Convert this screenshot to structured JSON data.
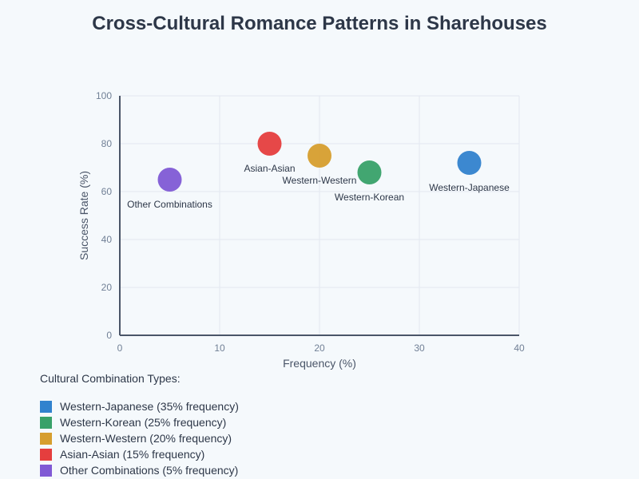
{
  "title": "Cross-Cultural Romance Patterns in Sharehouses",
  "legend": {
    "title": "Cultural Combination Types:",
    "items": [
      {
        "label": "Western-Japanese (35% frequency)",
        "color": "#3182ce"
      },
      {
        "label": "Western-Korean (25% frequency)",
        "color": "#38a169"
      },
      {
        "label": "Western-Western (20% frequency)",
        "color": "#d69e2e"
      },
      {
        "label": "Asian-Asian (15% frequency)",
        "color": "#e53e3e"
      },
      {
        "label": "Other Combinations (5% frequency)",
        "color": "#805ad5"
      }
    ]
  },
  "chart_data": {
    "type": "scatter",
    "title": "Cross-Cultural Romance Patterns in Sharehouses",
    "xlabel": "Frequency (%)",
    "ylabel": "Success Rate (%)",
    "xlim": [
      0,
      40
    ],
    "ylim": [
      0,
      100
    ],
    "xticks": [
      0,
      10,
      20,
      30,
      40
    ],
    "yticks": [
      0,
      20,
      40,
      60,
      80,
      100
    ],
    "grid": true,
    "legend_position": "bottom-left",
    "points": [
      {
        "label": "Western-Japanese",
        "x": 35,
        "y": 72,
        "color": "#3182ce"
      },
      {
        "label": "Western-Korean",
        "x": 25,
        "y": 68,
        "color": "#38a169"
      },
      {
        "label": "Western-Western",
        "x": 20,
        "y": 75,
        "color": "#d69e2e"
      },
      {
        "label": "Asian-Asian",
        "x": 15,
        "y": 80,
        "color": "#e53e3e"
      },
      {
        "label": "Other Combinations",
        "x": 5,
        "y": 65,
        "color": "#805ad5"
      }
    ]
  }
}
